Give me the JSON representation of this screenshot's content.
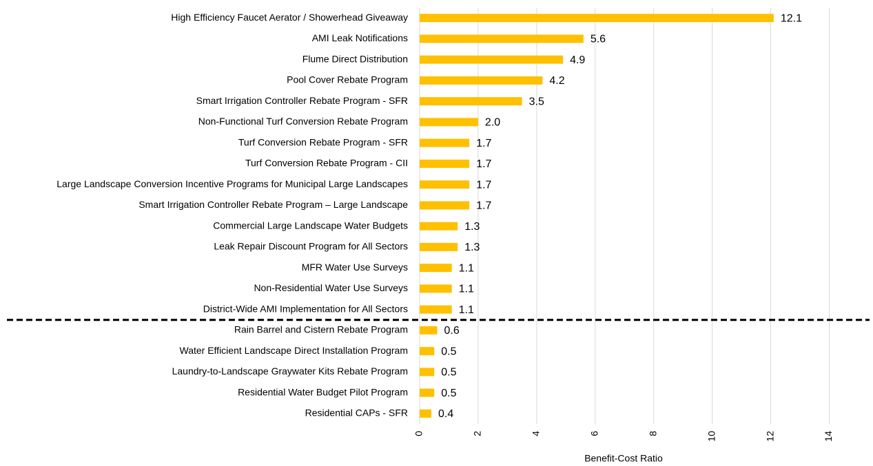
{
  "chart_data": {
    "type": "barh",
    "x_label": "Benefit-Cost Ratio",
    "categories": [
      "High Efficiency Faucet Aerator / Showerhead Giveaway",
      "AMI Leak Notifications",
      "Flume Direct Distribution",
      "Pool Cover Rebate Program",
      "Smart Irrigation Controller Rebate Program - SFR",
      "Non-Functional Turf Conversion Rebate Program",
      "Turf Conversion Rebate Program - SFR",
      "Turf Conversion Rebate Program - CII",
      "Large Landscape Conversion Incentive Programs for Municipal Large Landscapes",
      "Smart Irrigation Controller Rebate Program – Large Landscape",
      "Commercial Large Landscape Water Budgets",
      "Leak Repair Discount Program for All Sectors",
      "MFR Water Use Surveys",
      "Non-Residential Water Use Surveys",
      "District-Wide AMI Implementation for All Sectors",
      "Rain Barrel and Cistern Rebate Program",
      "Water Efficient Landscape Direct Installation Program",
      "Laundry-to-Landscape Graywater Kits Rebate Program",
      "Residential Water Budget Pilot Program",
      "Residential CAPs - SFR"
    ],
    "values": [
      12.1,
      5.6,
      4.9,
      4.2,
      3.5,
      2.0,
      1.7,
      1.7,
      1.7,
      1.7,
      1.3,
      1.3,
      1.1,
      1.1,
      1.1,
      0.6,
      0.5,
      0.5,
      0.5,
      0.4
    ],
    "value_labels": [
      "12.1",
      "5.6",
      "4.9",
      "4.2",
      "3.5",
      "2.0",
      "1.7",
      "1.7",
      "1.7",
      "1.7",
      "1.3",
      "1.3",
      "1.1",
      "1.1",
      "1.1",
      "0.6",
      "0.5",
      "0.5",
      "0.5",
      "0.4"
    ],
    "color": "#ffc000",
    "xlim": [
      0,
      15
    ],
    "xticks": [
      0,
      2,
      4,
      6,
      8,
      10,
      12,
      14
    ],
    "grid": true
  }
}
